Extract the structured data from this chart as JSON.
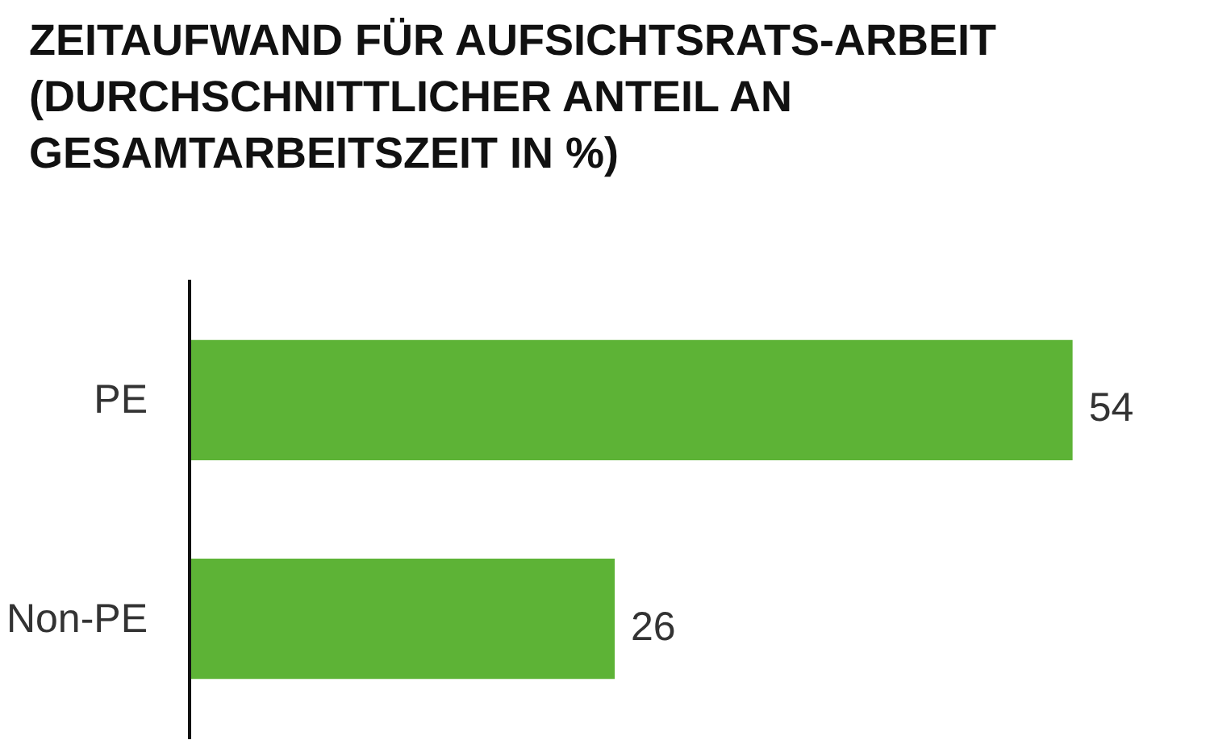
{
  "chart_data": {
    "type": "bar",
    "orientation": "horizontal",
    "title": "ZEITAUFWAND FÜR AUFSICHTSRATS-ARBEIT (DURCHSCHNITTLICHER ANTEIL AN GESAMTARBEITSZEIT IN %)",
    "categories": [
      "PE",
      "Non-PE"
    ],
    "values": [
      54,
      26
    ],
    "color": "#5db336",
    "data_labels": true,
    "grid": false
  }
}
